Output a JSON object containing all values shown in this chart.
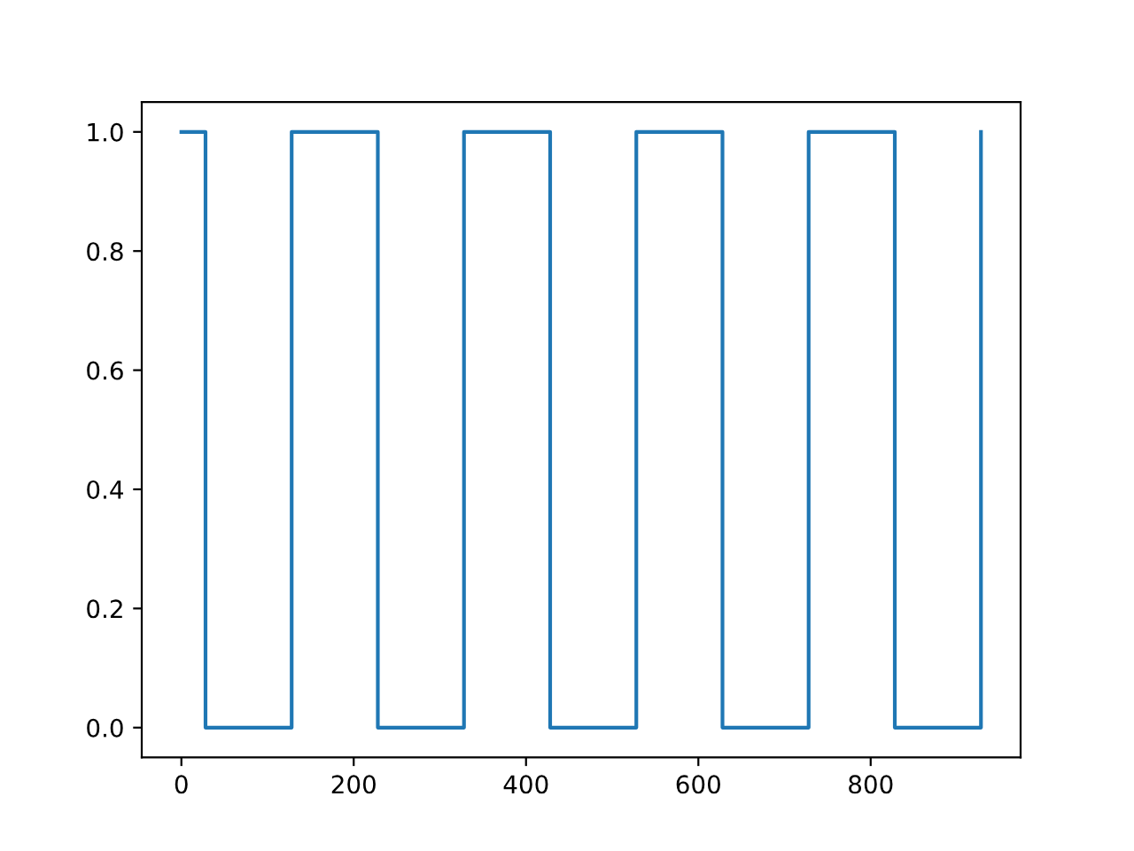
{
  "chart_data": {
    "type": "step",
    "x": [
      0,
      28,
      128,
      228,
      328,
      428,
      528,
      628,
      728,
      828,
      928
    ],
    "series": [
      {
        "color": "#1f77b4",
        "values": [
          1,
          0,
          1,
          0,
          1,
          0,
          1,
          0,
          1,
          0,
          1
        ]
      }
    ],
    "xlim": [
      -46,
      974
    ],
    "xticks": [
      0,
      200,
      400,
      600,
      800
    ],
    "ylim": [
      -0.05,
      1.05
    ],
    "yticks": [
      {
        "value": 0,
        "label": "0.0"
      },
      {
        "value": 0.2,
        "label": "0.2"
      },
      {
        "value": 0.4,
        "label": "0.4"
      },
      {
        "value": 0.6,
        "label": "0.6"
      },
      {
        "value": 0.8,
        "label": "0.8"
      },
      {
        "value": 1,
        "label": "1.0"
      }
    ],
    "grid": false,
    "legend": false,
    "marker": "none",
    "line_style": "solid"
  }
}
